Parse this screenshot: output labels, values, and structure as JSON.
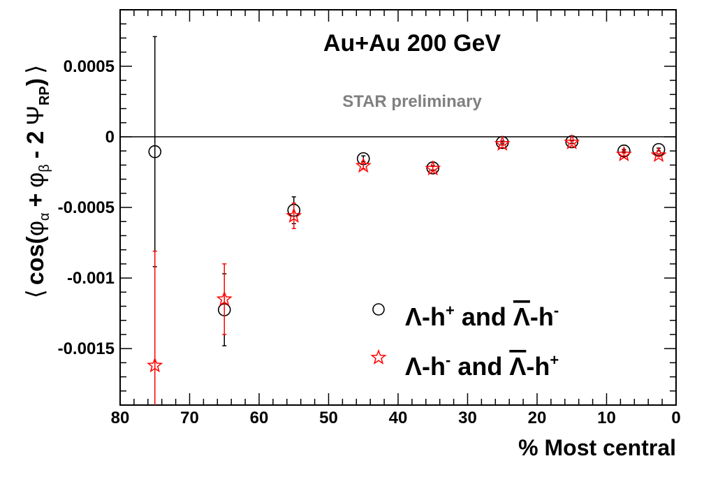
{
  "chart_data": {
    "type": "scatter",
    "title": "Au+Au 200 GeV",
    "annotation": "STAR preliminary",
    "xlabel": "% Most central",
    "ylabel_parts": {
      "open": "⟨",
      "cos": "cos(",
      "phi1": "φ",
      "sub_alpha": "α",
      "plus": "+",
      "phi2": "φ",
      "sub_beta": "β",
      "minus2": "- 2",
      "psi": "Ψ",
      "sub_rp": "RP",
      "close_paren": ")",
      "close": "⟩"
    },
    "xlim": [
      80,
      0
    ],
    "ylim": [
      -0.0019,
      0.0009
    ],
    "x_ticks": [
      80,
      70,
      60,
      50,
      40,
      30,
      20,
      10,
      0
    ],
    "x_tick_labels": [
      "80",
      "70",
      "60",
      "50",
      "40",
      "30",
      "20",
      "10",
      "0"
    ],
    "y_ticks": [
      0.0005,
      0,
      -0.0005,
      -0.001,
      -0.0015
    ],
    "y_tick_labels": [
      "0.0005",
      "0",
      "-0.0005",
      "-0.001",
      "-0.0015"
    ],
    "zero_line": true,
    "grid": false,
    "legend_position": "lower-right",
    "series": [
      {
        "legend_parts": {
          "a": "Λ-h",
          "a_sup": "+",
          "and": " and ",
          "b": "Λ",
          "b_tail": "-h",
          "b_sup": "-"
        },
        "marker": "open-circle",
        "color": "#000000",
        "points": [
          {
            "x": 75,
            "y": -0.000105,
            "err": 0.000815
          },
          {
            "x": 65,
            "y": -0.001225,
            "err": 0.000255
          },
          {
            "x": 55,
            "y": -0.00052,
            "err": 9.5e-05
          },
          {
            "x": 45,
            "y": -0.000155,
            "err": 2e-05
          },
          {
            "x": 35,
            "y": -0.00022,
            "err": 1.5e-05
          },
          {
            "x": 25,
            "y": -4e-05,
            "err": 1e-05
          },
          {
            "x": 15,
            "y": -3.5e-05,
            "err": 1e-05
          },
          {
            "x": 7.5,
            "y": -0.0001,
            "err": 1e-05
          },
          {
            "x": 2.5,
            "y": -9e-05,
            "err": 1e-05
          }
        ]
      },
      {
        "legend_parts": {
          "a": "Λ-h",
          "a_sup": "-",
          "and": " and ",
          "b": "Λ",
          "b_tail": "-h",
          "b_sup": "+"
        },
        "marker": "open-star",
        "color": "#ff0000",
        "points": [
          {
            "x": 75,
            "y": -0.00162,
            "err": 0.00081
          },
          {
            "x": 65,
            "y": -0.00115,
            "err": 0.00025
          },
          {
            "x": 55,
            "y": -0.00056,
            "err": 9e-05
          },
          {
            "x": 45,
            "y": -0.000205,
            "err": 2e-05
          },
          {
            "x": 35,
            "y": -0.000225,
            "err": 1.5e-05
          },
          {
            "x": 25,
            "y": -5e-05,
            "err": 1e-05
          },
          {
            "x": 15,
            "y": -4e-05,
            "err": 1e-05
          },
          {
            "x": 7.5,
            "y": -0.000125,
            "err": 1e-05
          },
          {
            "x": 2.5,
            "y": -0.00013,
            "err": 1e-05
          }
        ]
      }
    ]
  }
}
